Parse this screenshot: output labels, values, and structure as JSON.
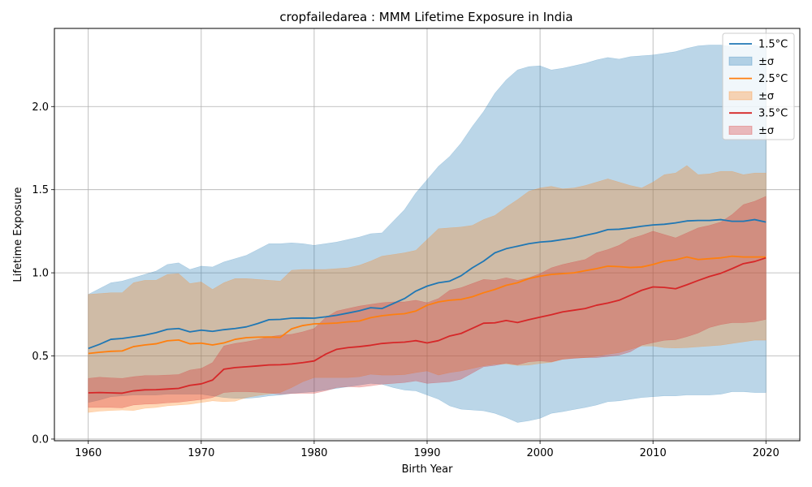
{
  "chart_data": {
    "type": "area",
    "title": "cropfailedarea : MMM Lifetime Exposure in India",
    "xlabel": "Birth Year",
    "ylabel": "Lifetime Exposure",
    "xlim": [
      1957,
      2023
    ],
    "ylim": [
      -0.01,
      2.47
    ],
    "xticks": [
      1960,
      1970,
      1980,
      1990,
      2000,
      2010,
      2020
    ],
    "xtick_labels": [
      "1960",
      "1970",
      "1980",
      "1990",
      "2000",
      "2010",
      "2020"
    ],
    "yticks": [
      0.0,
      0.5,
      1.0,
      1.5,
      2.0
    ],
    "ytick_labels": [
      "0.0",
      "0.5",
      "1.0",
      "1.5",
      "2.0"
    ],
    "grid": true,
    "legend_position": "top-right",
    "x": [
      1960,
      1961,
      1962,
      1963,
      1964,
      1965,
      1966,
      1967,
      1968,
      1969,
      1970,
      1971,
      1972,
      1973,
      1974,
      1975,
      1976,
      1977,
      1978,
      1979,
      1980,
      1981,
      1982,
      1983,
      1984,
      1985,
      1986,
      1987,
      1988,
      1989,
      1990,
      1991,
      1992,
      1993,
      1994,
      1995,
      1996,
      1997,
      1998,
      1999,
      2000,
      2001,
      2002,
      2003,
      2004,
      2005,
      2006,
      2007,
      2008,
      2009,
      2010,
      2011,
      2012,
      2013,
      2014,
      2015,
      2016,
      2017,
      2018,
      2019,
      2020
    ],
    "series": [
      {
        "name": "1.5°C",
        "band_name": "±σ",
        "color": "#1f77b4",
        "band_color": "#1f77b4",
        "values": [
          0.545,
          0.57,
          0.6,
          0.605,
          0.615,
          0.625,
          0.64,
          0.66,
          0.665,
          0.645,
          0.655,
          0.648,
          0.658,
          0.665,
          0.675,
          0.695,
          0.718,
          0.72,
          0.727,
          0.728,
          0.727,
          0.735,
          0.745,
          0.758,
          0.772,
          0.79,
          0.785,
          0.815,
          0.845,
          0.89,
          0.92,
          0.94,
          0.95,
          0.982,
          1.03,
          1.07,
          1.12,
          1.145,
          1.16,
          1.175,
          1.185,
          1.19,
          1.2,
          1.21,
          1.225,
          1.24,
          1.26,
          1.262,
          1.27,
          1.28,
          1.288,
          1.292,
          1.3,
          1.312,
          1.315,
          1.315,
          1.32,
          1.31,
          1.31,
          1.32,
          1.305
        ],
        "upper": [
          0.87,
          0.905,
          0.94,
          0.95,
          0.97,
          0.99,
          1.01,
          1.05,
          1.06,
          1.02,
          1.04,
          1.035,
          1.065,
          1.085,
          1.105,
          1.14,
          1.175,
          1.175,
          1.18,
          1.175,
          1.165,
          1.175,
          1.185,
          1.2,
          1.215,
          1.235,
          1.24,
          1.31,
          1.38,
          1.48,
          1.56,
          1.64,
          1.7,
          1.78,
          1.88,
          1.97,
          2.08,
          2.16,
          2.22,
          2.24,
          2.245,
          2.22,
          2.23,
          2.245,
          2.26,
          2.28,
          2.295,
          2.285,
          2.3,
          2.305,
          2.31,
          2.32,
          2.33,
          2.35,
          2.365,
          2.37,
          2.37,
          2.36,
          2.36,
          2.37,
          2.35
        ],
        "lower": [
          0.22,
          0.235,
          0.255,
          0.26,
          0.265,
          0.265,
          0.265,
          0.27,
          0.27,
          0.27,
          0.27,
          0.26,
          0.25,
          0.245,
          0.245,
          0.25,
          0.26,
          0.265,
          0.275,
          0.28,
          0.285,
          0.295,
          0.305,
          0.315,
          0.325,
          0.335,
          0.33,
          0.31,
          0.295,
          0.29,
          0.265,
          0.24,
          0.2,
          0.18,
          0.175,
          0.17,
          0.155,
          0.13,
          0.1,
          0.11,
          0.125,
          0.155,
          0.165,
          0.178,
          0.19,
          0.205,
          0.225,
          0.23,
          0.24,
          0.25,
          0.255,
          0.26,
          0.26,
          0.265,
          0.265,
          0.265,
          0.27,
          0.285,
          0.285,
          0.28,
          0.28
        ]
      },
      {
        "name": "2.5°C",
        "band_name": "±σ",
        "color": "#ff7f0e",
        "band_color": "#ff7f0e",
        "values": [
          0.515,
          0.522,
          0.528,
          0.53,
          0.556,
          0.566,
          0.573,
          0.591,
          0.596,
          0.573,
          0.577,
          0.566,
          0.578,
          0.6,
          0.61,
          0.613,
          0.614,
          0.612,
          0.663,
          0.683,
          0.693,
          0.695,
          0.698,
          0.705,
          0.71,
          0.73,
          0.742,
          0.749,
          0.754,
          0.77,
          0.805,
          0.825,
          0.835,
          0.84,
          0.856,
          0.88,
          0.9,
          0.925,
          0.94,
          0.965,
          0.98,
          0.99,
          0.995,
          1.0,
          1.013,
          1.025,
          1.04,
          1.037,
          1.032,
          1.035,
          1.05,
          1.07,
          1.078,
          1.095,
          1.08,
          1.085,
          1.09,
          1.1,
          1.095,
          1.095,
          1.095
        ],
        "upper": [
          0.87,
          0.875,
          0.88,
          0.88,
          0.94,
          0.955,
          0.955,
          0.99,
          0.995,
          0.935,
          0.945,
          0.9,
          0.94,
          0.965,
          0.965,
          0.96,
          0.955,
          0.95,
          1.015,
          1.02,
          1.02,
          1.02,
          1.025,
          1.03,
          1.045,
          1.07,
          1.1,
          1.11,
          1.12,
          1.135,
          1.2,
          1.265,
          1.27,
          1.275,
          1.285,
          1.32,
          1.345,
          1.395,
          1.44,
          1.49,
          1.51,
          1.52,
          1.505,
          1.51,
          1.525,
          1.545,
          1.565,
          1.545,
          1.525,
          1.51,
          1.545,
          1.59,
          1.6,
          1.645,
          1.59,
          1.595,
          1.61,
          1.61,
          1.59,
          1.6,
          1.6
        ],
        "lower": [
          0.16,
          0.168,
          0.172,
          0.175,
          0.172,
          0.185,
          0.19,
          0.2,
          0.205,
          0.21,
          0.22,
          0.23,
          0.225,
          0.228,
          0.25,
          0.262,
          0.272,
          0.28,
          0.31,
          0.345,
          0.37,
          0.37,
          0.37,
          0.37,
          0.375,
          0.39,
          0.385,
          0.385,
          0.388,
          0.4,
          0.41,
          0.385,
          0.4,
          0.41,
          0.425,
          0.44,
          0.45,
          0.452,
          0.443,
          0.445,
          0.455,
          0.462,
          0.48,
          0.488,
          0.49,
          0.498,
          0.51,
          0.52,
          0.54,
          0.56,
          0.56,
          0.55,
          0.548,
          0.55,
          0.555,
          0.56,
          0.565,
          0.575,
          0.585,
          0.595,
          0.595
        ]
      },
      {
        "name": "3.5°C",
        "band_name": "±σ",
        "color": "#d62728",
        "band_color": "#d62728",
        "values": [
          0.278,
          0.28,
          0.278,
          0.276,
          0.29,
          0.296,
          0.297,
          0.301,
          0.305,
          0.323,
          0.332,
          0.355,
          0.42,
          0.43,
          0.435,
          0.44,
          0.446,
          0.447,
          0.452,
          0.46,
          0.47,
          0.51,
          0.54,
          0.55,
          0.556,
          0.564,
          0.575,
          0.58,
          0.583,
          0.592,
          0.578,
          0.592,
          0.62,
          0.635,
          0.666,
          0.697,
          0.699,
          0.713,
          0.701,
          0.718,
          0.733,
          0.748,
          0.765,
          0.775,
          0.785,
          0.805,
          0.818,
          0.835,
          0.865,
          0.895,
          0.915,
          0.912,
          0.904,
          0.928,
          0.954,
          0.978,
          0.997,
          1.025,
          1.055,
          1.068,
          1.09
        ],
        "upper": [
          0.365,
          0.372,
          0.368,
          0.365,
          0.375,
          0.382,
          0.382,
          0.385,
          0.388,
          0.415,
          0.425,
          0.46,
          0.56,
          0.575,
          0.585,
          0.598,
          0.615,
          0.625,
          0.63,
          0.645,
          0.665,
          0.73,
          0.77,
          0.785,
          0.8,
          0.81,
          0.82,
          0.825,
          0.825,
          0.835,
          0.82,
          0.845,
          0.895,
          0.91,
          0.935,
          0.96,
          0.955,
          0.97,
          0.955,
          0.97,
          0.995,
          1.03,
          1.05,
          1.065,
          1.08,
          1.12,
          1.14,
          1.165,
          1.205,
          1.225,
          1.25,
          1.23,
          1.21,
          1.24,
          1.27,
          1.285,
          1.305,
          1.35,
          1.41,
          1.43,
          1.46
        ],
        "lower": [
          0.19,
          0.19,
          0.19,
          0.188,
          0.205,
          0.21,
          0.212,
          0.218,
          0.222,
          0.23,
          0.238,
          0.25,
          0.28,
          0.285,
          0.285,
          0.282,
          0.277,
          0.27,
          0.274,
          0.275,
          0.275,
          0.29,
          0.31,
          0.315,
          0.312,
          0.32,
          0.33,
          0.335,
          0.34,
          0.35,
          0.335,
          0.34,
          0.345,
          0.36,
          0.397,
          0.435,
          0.443,
          0.457,
          0.447,
          0.465,
          0.47,
          0.465,
          0.48,
          0.485,
          0.49,
          0.49,
          0.497,
          0.505,
          0.525,
          0.565,
          0.58,
          0.594,
          0.598,
          0.616,
          0.638,
          0.671,
          0.689,
          0.7,
          0.7,
          0.706,
          0.72
        ]
      }
    ]
  }
}
